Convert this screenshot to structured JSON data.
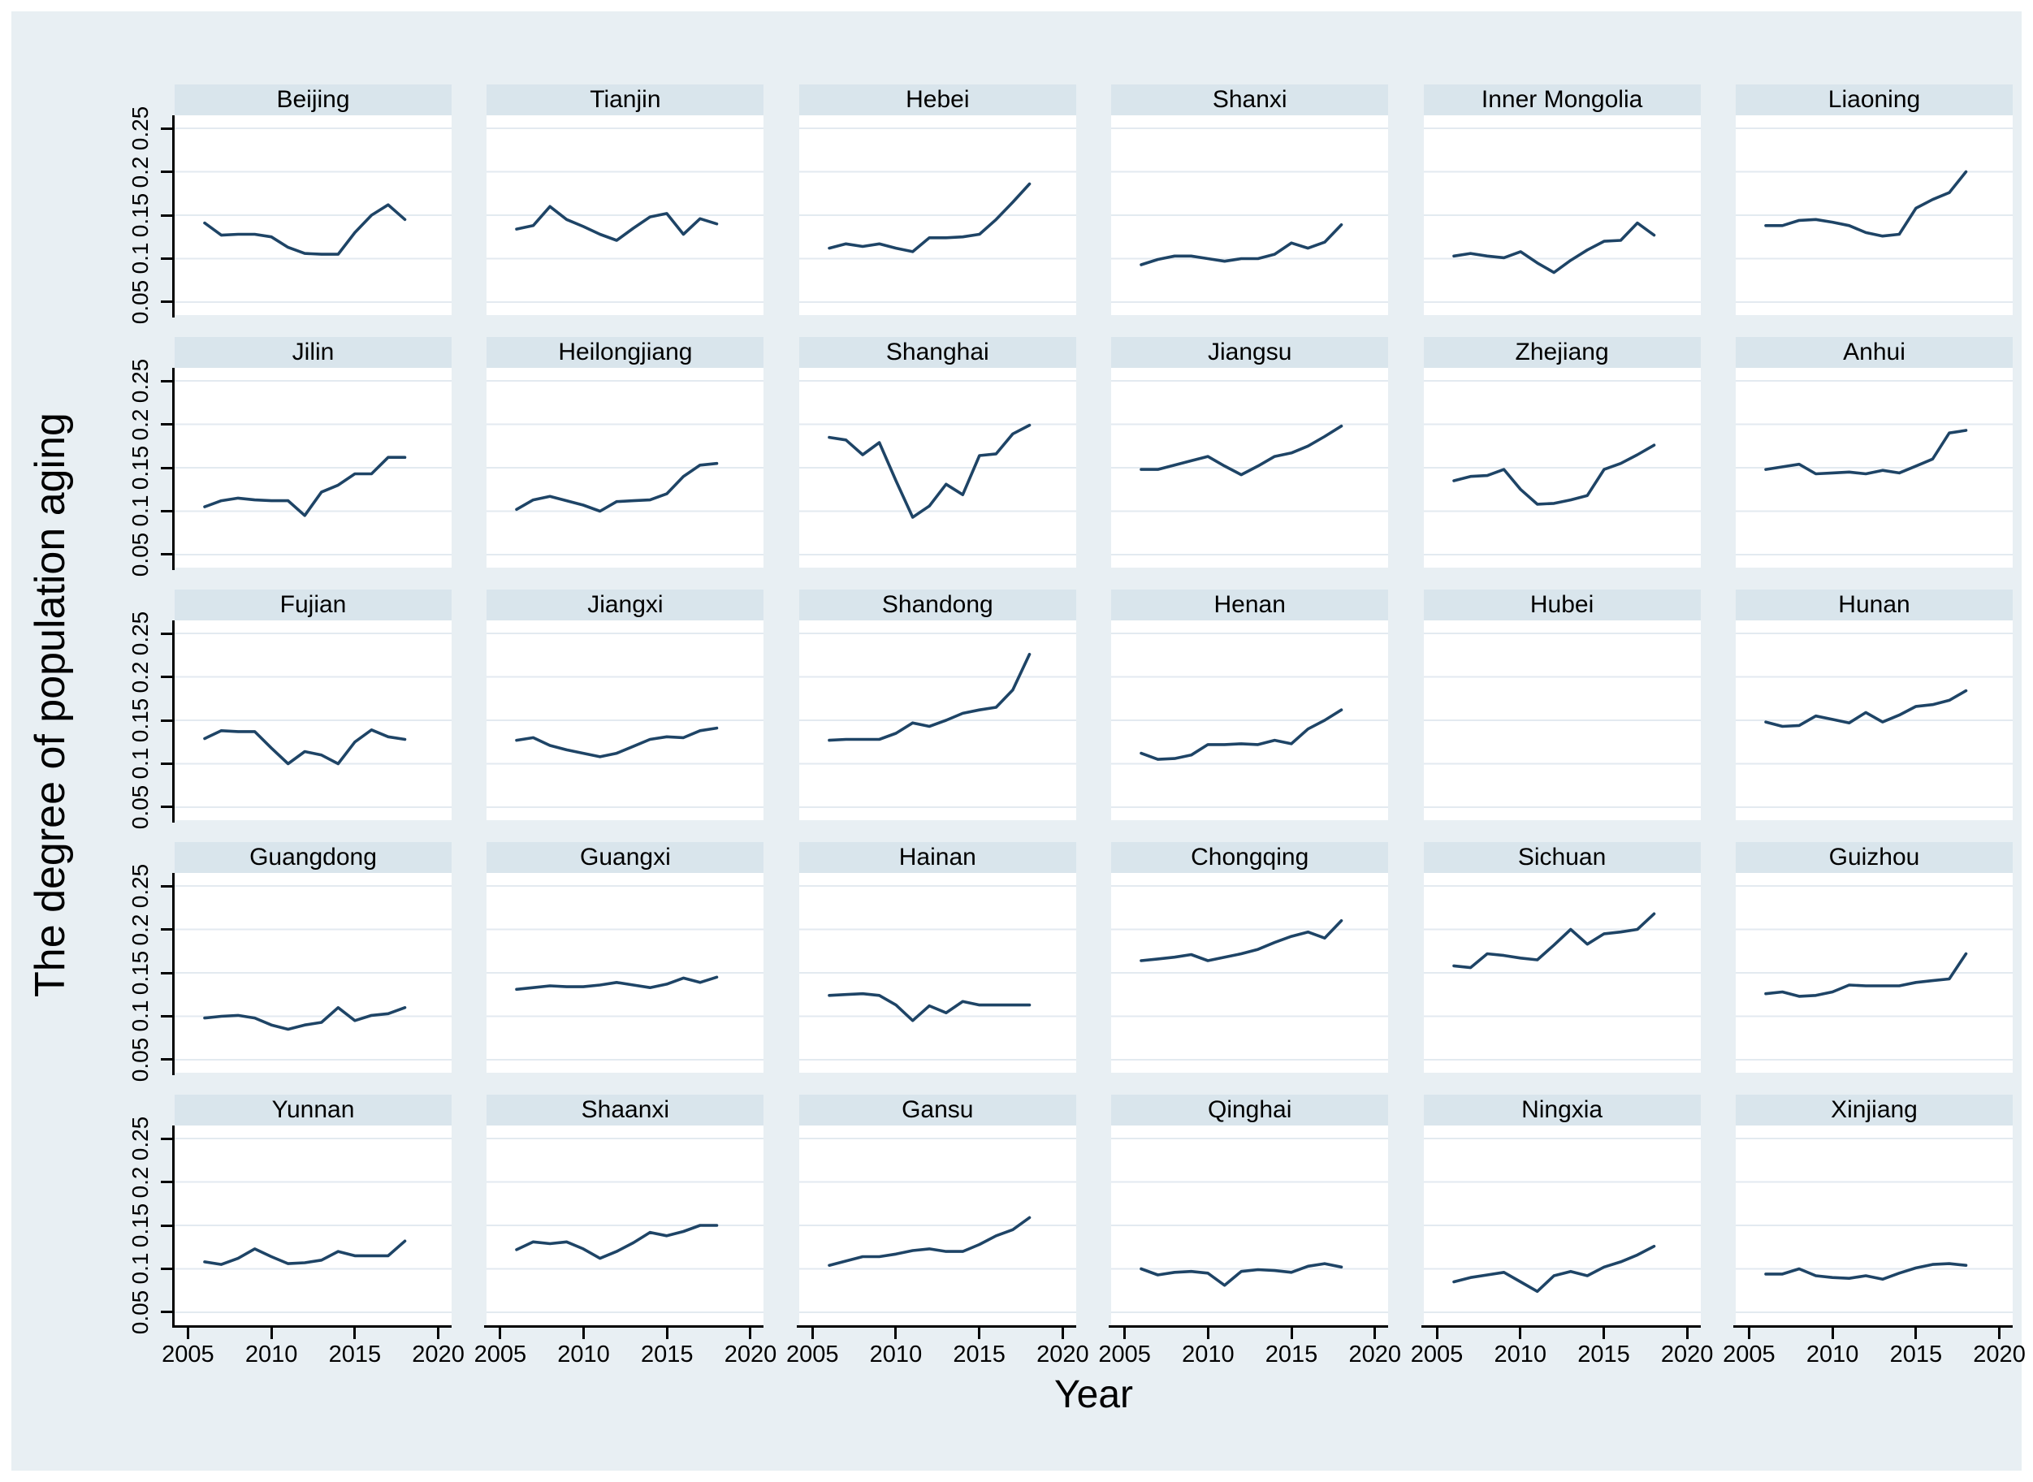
{
  "figure": {
    "y_tick_labels": [
      "0.05",
      "0.1",
      "0.15",
      "0.2",
      "0.25"
    ],
    "x_tick_labels": [
      "2005",
      "2010",
      "2015",
      "2020"
    ],
    "colors": {
      "canvas_bg": "#e8eff3",
      "panel_header_bg": "#d9e5ec",
      "plot_bg": "#ffffff",
      "gridline": "#e3eaf0",
      "line": "#1e4466",
      "axis": "#000000"
    }
  },
  "chart_data": {
    "type": "line",
    "ylabel": "The degree of population aging",
    "xlabel": "Year",
    "layout": {
      "rows": 5,
      "cols": 6,
      "legend": "none",
      "grid": "horizontal"
    },
    "x": [
      2006,
      2007,
      2008,
      2009,
      2010,
      2011,
      2012,
      2013,
      2014,
      2015,
      2016,
      2017,
      2018
    ],
    "x_ticks": [
      2005,
      2010,
      2015,
      2020
    ],
    "y_ticks": [
      0.05,
      0.1,
      0.15,
      0.2,
      0.25
    ],
    "xlim": [
      2004.2,
      2020.8
    ],
    "ylim": [
      0.035,
      0.265
    ],
    "panels": [
      {
        "title": "Beijing",
        "values": [
          0.141,
          0.127,
          0.128,
          0.128,
          0.125,
          0.113,
          0.106,
          0.105,
          0.105,
          0.13,
          0.15,
          0.162,
          0.145
        ]
      },
      {
        "title": "Tianjin",
        "values": [
          0.134,
          0.138,
          0.16,
          0.145,
          0.137,
          0.128,
          0.121,
          0.135,
          0.148,
          0.152,
          0.128,
          0.146,
          0.14
        ]
      },
      {
        "title": "Hebei",
        "values": [
          0.112,
          0.117,
          0.114,
          0.117,
          0.112,
          0.108,
          0.124,
          0.124,
          0.125,
          0.128,
          0.145,
          0.165,
          0.186
        ]
      },
      {
        "title": "Shanxi",
        "values": [
          0.093,
          0.099,
          0.103,
          0.103,
          0.1,
          0.097,
          0.1,
          0.1,
          0.105,
          0.118,
          0.112,
          0.119,
          0.139
        ]
      },
      {
        "title": "Inner Mongolia",
        "values": [
          0.103,
          0.106,
          0.103,
          0.101,
          0.108,
          0.095,
          0.084,
          0.098,
          0.11,
          0.12,
          0.121,
          0.141,
          0.127
        ]
      },
      {
        "title": "Liaoning",
        "values": [
          0.138,
          0.138,
          0.144,
          0.145,
          0.142,
          0.138,
          0.13,
          0.126,
          0.128,
          0.158,
          0.168,
          0.176,
          0.2
        ]
      },
      {
        "title": "Jilin",
        "values": [
          0.105,
          0.112,
          0.115,
          0.113,
          0.112,
          0.112,
          0.095,
          0.122,
          0.13,
          0.143,
          0.143,
          0.162,
          0.162
        ]
      },
      {
        "title": "Heilongjiang",
        "values": [
          0.102,
          0.113,
          0.117,
          0.112,
          0.107,
          0.1,
          0.111,
          0.112,
          0.113,
          0.12,
          0.14,
          0.153,
          0.155
        ]
      },
      {
        "title": "Shanghai",
        "values": [
          0.185,
          0.182,
          0.165,
          0.179,
          0.135,
          0.093,
          0.106,
          0.131,
          0.119,
          0.164,
          0.166,
          0.189,
          0.199
        ]
      },
      {
        "title": "Jiangsu",
        "values": [
          0.148,
          0.148,
          0.153,
          0.158,
          0.163,
          0.152,
          0.142,
          0.152,
          0.163,
          0.167,
          0.175,
          0.186,
          0.198
        ]
      },
      {
        "title": "Zhejiang",
        "values": [
          0.135,
          0.14,
          0.141,
          0.148,
          0.125,
          0.108,
          0.109,
          0.113,
          0.118,
          0.148,
          0.155,
          0.165,
          0.176
        ]
      },
      {
        "title": "Anhui",
        "values": [
          0.148,
          0.151,
          0.154,
          0.143,
          0.144,
          0.145,
          0.143,
          0.147,
          0.144,
          0.152,
          0.16,
          0.19,
          0.193
        ]
      },
      {
        "title": "Fujian",
        "values": [
          0.129,
          0.138,
          0.137,
          0.137,
          0.118,
          0.1,
          0.114,
          0.11,
          0.1,
          0.125,
          0.139,
          0.131,
          0.128
        ]
      },
      {
        "title": "Jiangxi",
        "values": [
          0.127,
          0.13,
          0.121,
          0.116,
          0.112,
          0.108,
          0.112,
          0.12,
          0.128,
          0.131,
          0.13,
          0.138,
          0.141
        ]
      },
      {
        "title": "Shandong",
        "values": [
          0.127,
          0.128,
          0.128,
          0.128,
          0.135,
          0.147,
          0.143,
          0.15,
          0.158,
          0.162,
          0.165,
          0.185,
          0.226
        ]
      },
      {
        "title": "Henan",
        "values": [
          0.112,
          0.105,
          0.106,
          0.11,
          0.122,
          0.122,
          0.123,
          0.122,
          0.127,
          0.123,
          0.14,
          0.15,
          0.162
        ]
      },
      {
        "title": "Hubei",
        "values": []
      },
      {
        "title": "Hunan",
        "values": [
          0.148,
          0.143,
          0.144,
          0.155,
          0.151,
          0.147,
          0.159,
          0.148,
          0.156,
          0.166,
          0.168,
          0.173,
          0.184
        ]
      },
      {
        "title": "Guangdong",
        "values": [
          0.098,
          0.1,
          0.101,
          0.098,
          0.09,
          0.085,
          0.09,
          0.093,
          0.11,
          0.095,
          0.101,
          0.103,
          0.11
        ]
      },
      {
        "title": "Guangxi",
        "values": [
          0.131,
          0.133,
          0.135,
          0.134,
          0.134,
          0.136,
          0.139,
          0.136,
          0.133,
          0.137,
          0.144,
          0.139,
          0.145
        ]
      },
      {
        "title": "Hainan",
        "values": [
          0.124,
          0.125,
          0.126,
          0.124,
          0.113,
          0.095,
          0.112,
          0.104,
          0.117,
          0.113,
          0.113,
          0.113,
          0.113
        ]
      },
      {
        "title": "Chongqing",
        "values": [
          0.164,
          0.166,
          0.168,
          0.171,
          0.164,
          0.168,
          0.172,
          0.177,
          0.185,
          0.192,
          0.197,
          0.19,
          0.21
        ]
      },
      {
        "title": "Sichuan",
        "values": [
          0.158,
          0.156,
          0.172,
          0.17,
          0.167,
          0.165,
          0.182,
          0.2,
          0.183,
          0.195,
          0.197,
          0.2,
          0.218
        ]
      },
      {
        "title": "Guizhou",
        "values": [
          0.126,
          0.128,
          0.123,
          0.124,
          0.128,
          0.136,
          0.135,
          0.135,
          0.135,
          0.139,
          0.141,
          0.143,
          0.172
        ]
      },
      {
        "title": "Yunnan",
        "values": [
          0.108,
          0.105,
          0.112,
          0.123,
          0.114,
          0.106,
          0.107,
          0.11,
          0.12,
          0.115,
          0.115,
          0.115,
          0.132
        ]
      },
      {
        "title": "Shaanxi",
        "values": [
          0.122,
          0.131,
          0.129,
          0.131,
          0.123,
          0.112,
          0.12,
          0.13,
          0.142,
          0.138,
          0.143,
          0.15,
          0.15
        ]
      },
      {
        "title": "Gansu",
        "values": [
          0.104,
          0.109,
          0.114,
          0.114,
          0.117,
          0.121,
          0.123,
          0.12,
          0.12,
          0.128,
          0.138,
          0.145,
          0.159
        ]
      },
      {
        "title": "Qinghai",
        "values": [
          0.1,
          0.093,
          0.096,
          0.097,
          0.095,
          0.081,
          0.097,
          0.099,
          0.098,
          0.096,
          0.103,
          0.106,
          0.102
        ]
      },
      {
        "title": "Ningxia",
        "values": [
          0.085,
          0.09,
          0.093,
          0.096,
          0.085,
          0.074,
          0.092,
          0.097,
          0.092,
          0.102,
          0.108,
          0.116,
          0.126
        ]
      },
      {
        "title": "Xinjiang",
        "values": [
          0.094,
          0.094,
          0.1,
          0.092,
          0.09,
          0.089,
          0.092,
          0.088,
          0.095,
          0.101,
          0.105,
          0.106,
          0.104
        ]
      }
    ]
  }
}
